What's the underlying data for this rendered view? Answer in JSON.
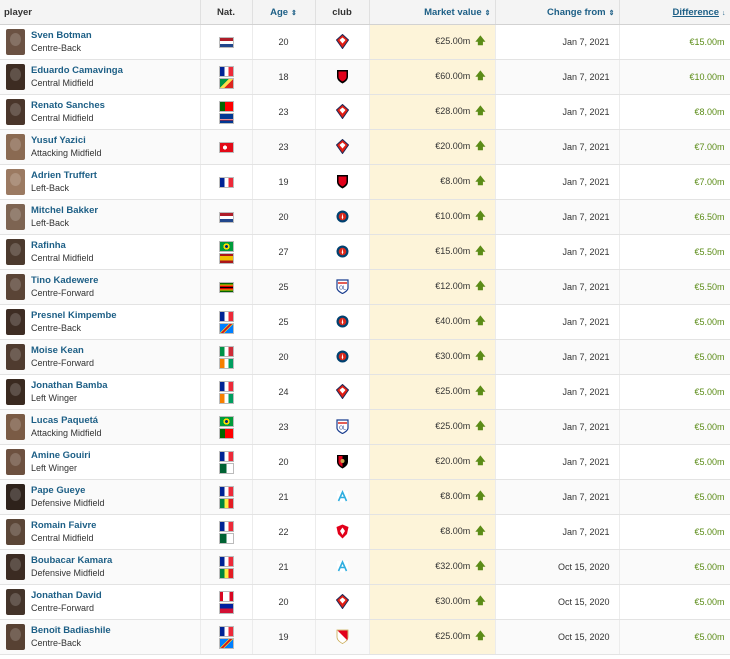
{
  "headers": {
    "player": "player",
    "nat": "Nat.",
    "age": "Age",
    "club": "club",
    "market_value": "Market value",
    "change_from": "Change from",
    "difference": "Difference"
  },
  "colors": {
    "link": "#1d5f86",
    "up_arrow": "#5b8c17",
    "market_value_bg": "#fdf4d9"
  },
  "rows": [
    {
      "name": "Sven Botman",
      "position": "Centre-Back",
      "flags": [
        "netherlands"
      ],
      "age": "20",
      "club": "lille",
      "market_value": "€25.00m",
      "change_from": "Jan 7, 2021",
      "difference": "€15.00m"
    },
    {
      "name": "Eduardo Camavinga",
      "position": "Central Midfield",
      "flags": [
        "france",
        "congo"
      ],
      "age": "18",
      "club": "rennes",
      "market_value": "€60.00m",
      "change_from": "Jan 7, 2021",
      "difference": "€10.00m"
    },
    {
      "name": "Renato Sanches",
      "position": "Central Midfield",
      "flags": [
        "portugal",
        "cape-verde"
      ],
      "age": "23",
      "club": "lille",
      "market_value": "€28.00m",
      "change_from": "Jan 7, 2021",
      "difference": "€8.00m"
    },
    {
      "name": "Yusuf Yazici",
      "position": "Attacking Midfield",
      "flags": [
        "turkey"
      ],
      "age": "23",
      "club": "lille",
      "market_value": "€20.00m",
      "change_from": "Jan 7, 2021",
      "difference": "€7.00m"
    },
    {
      "name": "Adrien Truffert",
      "position": "Left-Back",
      "flags": [
        "france"
      ],
      "age": "19",
      "club": "rennes",
      "market_value": "€8.00m",
      "change_from": "Jan 7, 2021",
      "difference": "€7.00m"
    },
    {
      "name": "Mitchel Bakker",
      "position": "Left-Back",
      "flags": [
        "netherlands"
      ],
      "age": "20",
      "club": "psg",
      "market_value": "€10.00m",
      "change_from": "Jan 7, 2021",
      "difference": "€6.50m"
    },
    {
      "name": "Rafinha",
      "position": "Central Midfield",
      "flags": [
        "brazil",
        "spain"
      ],
      "age": "27",
      "club": "psg",
      "market_value": "€15.00m",
      "change_from": "Jan 7, 2021",
      "difference": "€5.50m"
    },
    {
      "name": "Tino Kadewere",
      "position": "Centre-Forward",
      "flags": [
        "zimbabwe"
      ],
      "age": "25",
      "club": "lyon",
      "market_value": "€12.00m",
      "change_from": "Jan 7, 2021",
      "difference": "€5.50m"
    },
    {
      "name": "Presnel Kimpembe",
      "position": "Centre-Back",
      "flags": [
        "france",
        "dr-congo"
      ],
      "age": "25",
      "club": "psg",
      "market_value": "€40.00m",
      "change_from": "Jan 7, 2021",
      "difference": "€5.00m"
    },
    {
      "name": "Moise Kean",
      "position": "Centre-Forward",
      "flags": [
        "italy",
        "ivory-coast"
      ],
      "age": "20",
      "club": "psg",
      "market_value": "€30.00m",
      "change_from": "Jan 7, 2021",
      "difference": "€5.00m"
    },
    {
      "name": "Jonathan Bamba",
      "position": "Left Winger",
      "flags": [
        "france",
        "ivory-coast"
      ],
      "age": "24",
      "club": "lille",
      "market_value": "€25.00m",
      "change_from": "Jan 7, 2021",
      "difference": "€5.00m"
    },
    {
      "name": "Lucas Paquetá",
      "position": "Attacking Midfield",
      "flags": [
        "brazil",
        "portugal"
      ],
      "age": "23",
      "club": "lyon",
      "market_value": "€25.00m",
      "change_from": "Jan 7, 2021",
      "difference": "€5.00m"
    },
    {
      "name": "Amine Gouiri",
      "position": "Left Winger",
      "flags": [
        "france",
        "algeria"
      ],
      "age": "20",
      "club": "nice",
      "market_value": "€20.00m",
      "change_from": "Jan 7, 2021",
      "difference": "€5.00m"
    },
    {
      "name": "Pape Gueye",
      "position": "Defensive Midfield",
      "flags": [
        "france",
        "senegal"
      ],
      "age": "21",
      "club": "marseille",
      "market_value": "€8.00m",
      "change_from": "Jan 7, 2021",
      "difference": "€5.00m"
    },
    {
      "name": "Romain Faivre",
      "position": "Central Midfield",
      "flags": [
        "france",
        "algeria"
      ],
      "age": "22",
      "club": "brest",
      "market_value": "€8.00m",
      "change_from": "Jan 7, 2021",
      "difference": "€5.00m"
    },
    {
      "name": "Boubacar Kamara",
      "position": "Defensive Midfield",
      "flags": [
        "france",
        "senegal"
      ],
      "age": "21",
      "club": "marseille",
      "market_value": "€32.00m",
      "change_from": "Oct 15, 2020",
      "difference": "€5.00m"
    },
    {
      "name": "Jonathan David",
      "position": "Centre-Forward",
      "flags": [
        "canada",
        "haiti"
      ],
      "age": "20",
      "club": "lille",
      "market_value": "€30.00m",
      "change_from": "Oct 15, 2020",
      "difference": "€5.00m"
    },
    {
      "name": "Benoît Badiashile",
      "position": "Centre-Back",
      "flags": [
        "france",
        "dr-congo"
      ],
      "age": "19",
      "club": "monaco",
      "market_value": "€25.00m",
      "change_from": "Oct 15, 2020",
      "difference": "€5.00m"
    }
  ]
}
